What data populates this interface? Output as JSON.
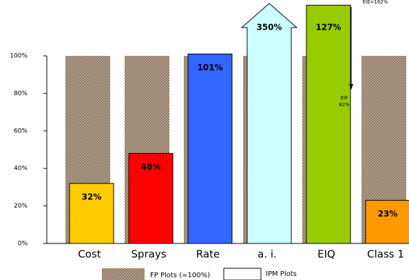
{
  "chart_data": {
    "type": "bar",
    "categories": [
      "Cost",
      "Sprays",
      "Rate",
      "a. i.",
      "EIQ",
      "Class 1"
    ],
    "series": [
      {
        "name": "FP Plots (=100%)",
        "color": "#a8927a",
        "values": [
          100,
          100,
          100,
          100,
          100,
          100
        ]
      },
      {
        "name": "IPM Plots",
        "color": "#ffffff",
        "colors": [
          "#ffcc00",
          "#ff0000",
          "#3366ff",
          "#ccffff",
          "#99cc00",
          "#ff9900"
        ],
        "values": [
          32,
          48,
          101,
          350,
          127,
          23
        ],
        "value_labels": [
          "32%",
          "48%",
          "101%",
          "350%",
          "127%",
          "23%"
        ]
      }
    ],
    "ylim": [
      0,
      100
    ],
    "yticks": [
      {
        "value": 0,
        "label": "0%"
      },
      {
        "value": 20,
        "label": "20%"
      },
      {
        "value": 40,
        "label": "40%"
      },
      {
        "value": 60,
        "label": "60%"
      },
      {
        "value": 80,
        "label": "80%"
      },
      {
        "value": 100,
        "label": "100%"
      }
    ],
    "annotations": [
      "EIE=162%",
      "EIF",
      "82%"
    ]
  }
}
